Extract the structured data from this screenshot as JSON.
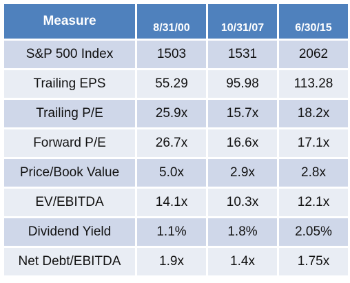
{
  "table": {
    "headers": [
      "Measure",
      "8/31/00",
      "10/31/07",
      "6/30/15"
    ],
    "rows": [
      {
        "measure": "S&P 500 Index",
        "values": [
          "1503",
          "1531",
          "2062"
        ]
      },
      {
        "measure": "Trailing EPS",
        "values": [
          "55.29",
          "95.98",
          "113.28"
        ]
      },
      {
        "measure": "Trailing P/E",
        "values": [
          "25.9x",
          "15.7x",
          "18.2x"
        ]
      },
      {
        "measure": "Forward P/E",
        "values": [
          "26.7x",
          "16.6x",
          "17.1x"
        ]
      },
      {
        "measure": "Price/Book Value",
        "values": [
          "5.0x",
          "2.9x",
          "2.8x"
        ]
      },
      {
        "measure": "EV/EBITDA",
        "values": [
          "14.1x",
          "10.3x",
          "12.1x"
        ]
      },
      {
        "measure": "Dividend Yield",
        "values": [
          "1.1%",
          "1.8%",
          "2.05%"
        ]
      },
      {
        "measure": "Net Debt/EBITDA",
        "values": [
          "1.9x",
          "1.4x",
          "1.75x"
        ]
      }
    ]
  },
  "colors": {
    "header_bg": "#4f81bd",
    "header_text": "#ffffff",
    "row_odd_bg": "#cfd7e9",
    "row_even_bg": "#e9edf4"
  }
}
